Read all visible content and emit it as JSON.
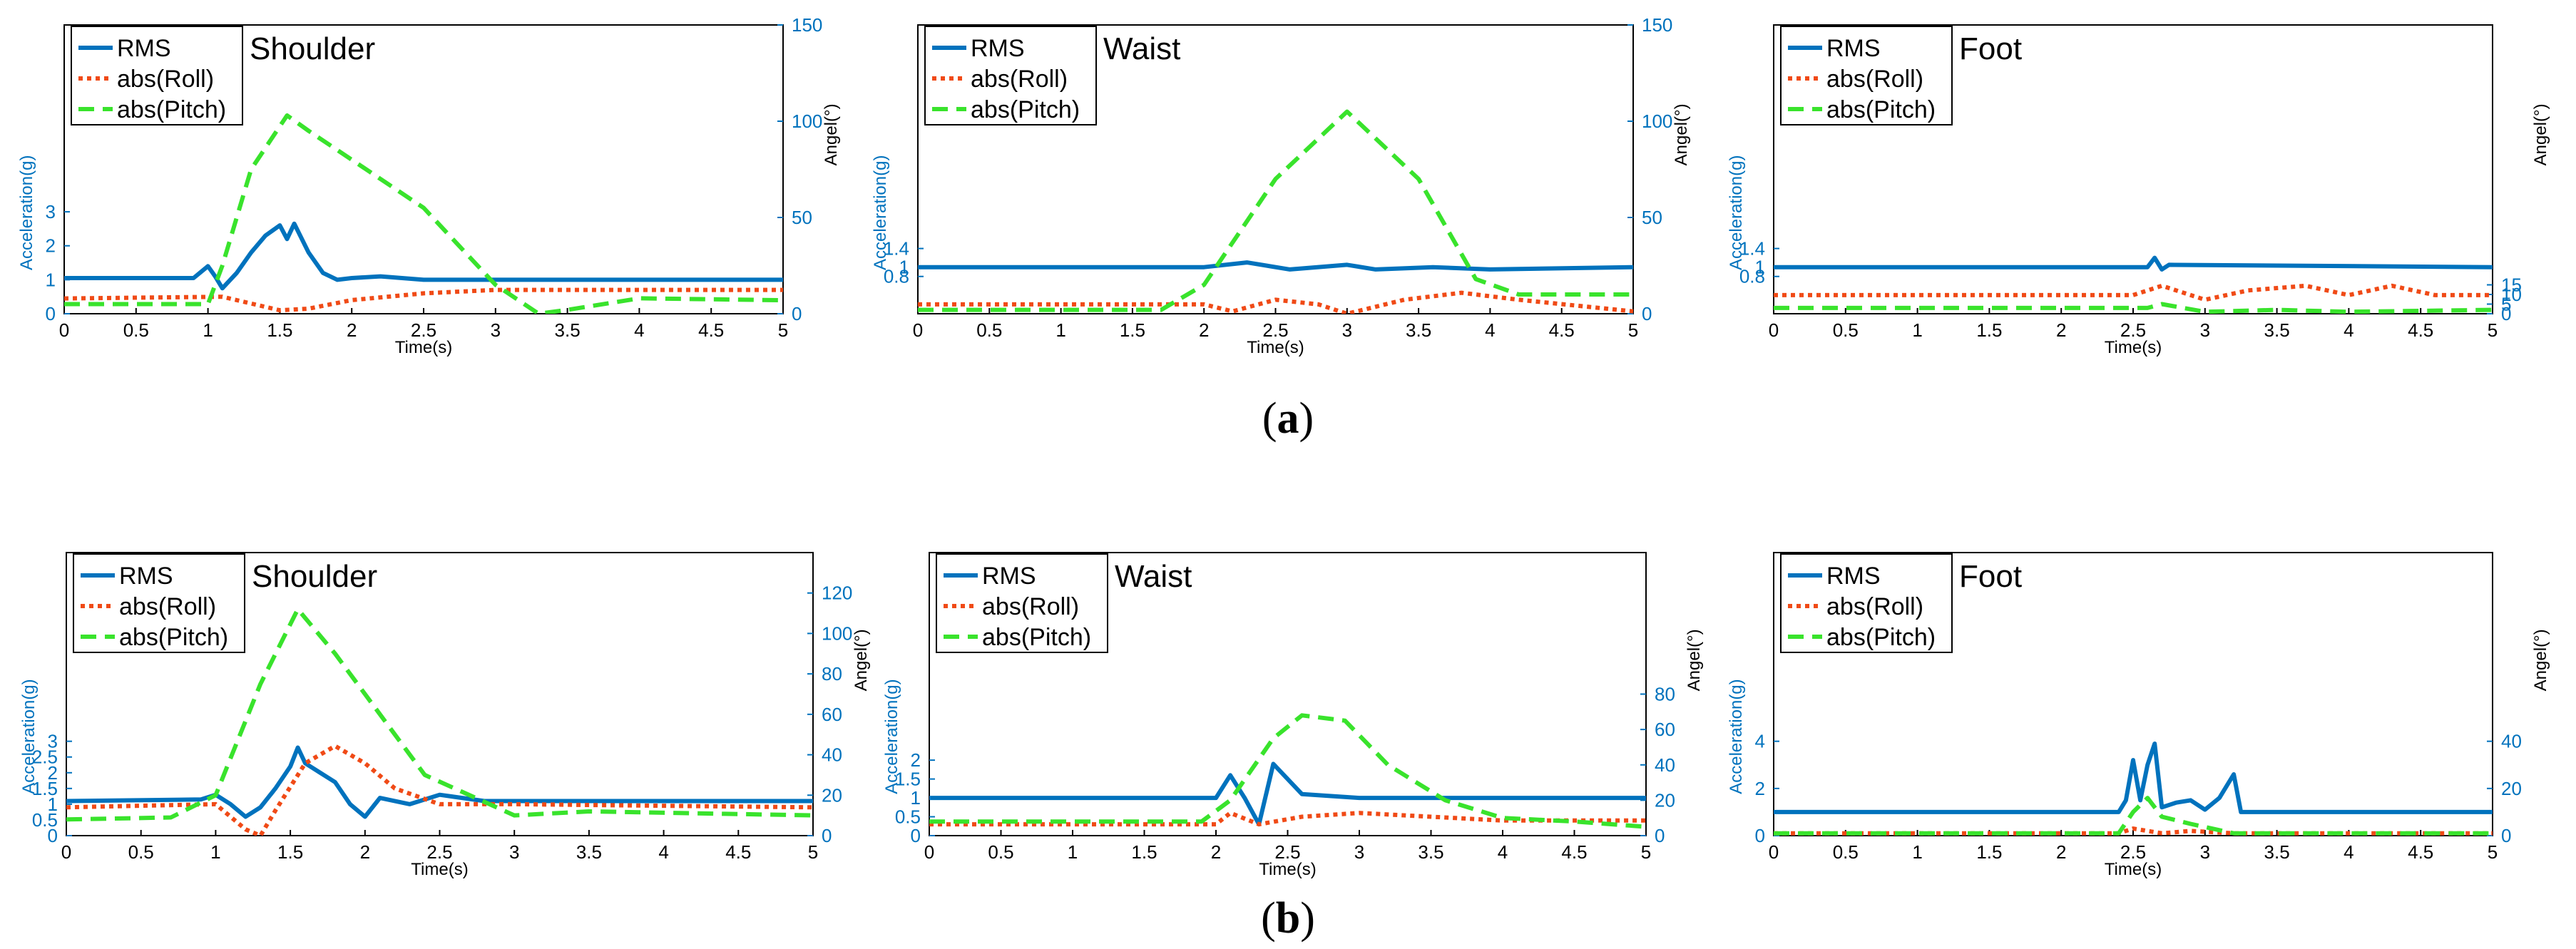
{
  "colors": {
    "rms": "#0072bd",
    "roll": "#f04a16",
    "pitch": "#39e32c",
    "axis_left": "#0072bd"
  },
  "captions": {
    "a": "a",
    "b": "b"
  },
  "chart_data": [
    {
      "type": "line",
      "title": "Shoulder",
      "xlabel": "Time(s)",
      "ylabel": "Acceleration(g)",
      "y2label": "Angel(°)",
      "xlim": [
        0,
        5
      ],
      "xticks": [
        "0",
        "0.5",
        "1",
        "1.5",
        "2",
        "2.5",
        "3",
        "3.5",
        "4",
        "4.5",
        "5"
      ],
      "ylim": [
        0,
        8.5
      ],
      "yticks": [
        "0",
        "1",
        "2",
        "3"
      ],
      "y2lim": [
        0,
        150
      ],
      "y2ticks": [
        "0",
        "50",
        "100",
        "150"
      ],
      "legend": [
        "RMS",
        "abs(Roll)",
        "abs(Pitch)"
      ],
      "series": [
        {
          "name": "RMS",
          "axis": "left",
          "x": [
            0,
            0.9,
            1.0,
            1.05,
            1.1,
            1.2,
            1.3,
            1.4,
            1.5,
            1.55,
            1.6,
            1.7,
            1.8,
            1.9,
            2.0,
            2.2,
            2.5,
            5.0
          ],
          "y": [
            1.05,
            1.05,
            1.4,
            1.1,
            0.75,
            1.2,
            1.8,
            2.3,
            2.6,
            2.2,
            2.65,
            1.8,
            1.2,
            1.0,
            1.05,
            1.1,
            1.0,
            1.0
          ]
        },
        {
          "name": "abs(Roll)",
          "axis": "left",
          "x": [
            0,
            1.1,
            1.3,
            1.5,
            1.7,
            2.0,
            2.5,
            3.0,
            5.0
          ],
          "y": [
            0.45,
            0.5,
            0.3,
            0.1,
            0.15,
            0.4,
            0.6,
            0.7,
            0.7
          ]
        },
        {
          "name": "abs(Pitch)",
          "axis": "right",
          "x": [
            0,
            1.0,
            1.1,
            1.3,
            1.55,
            1.7,
            2.0,
            2.5,
            3.0,
            3.3,
            3.5,
            4.0,
            5.0
          ],
          "y": [
            5,
            5,
            25,
            75,
            103,
            95,
            80,
            55,
            15,
            0,
            2,
            8,
            7
          ]
        }
      ]
    },
    {
      "type": "line",
      "title": "Waist",
      "xlabel": "Time(s)",
      "ylabel": "Acceleration(g)",
      "y2label": "Angel(°)",
      "xlim": [
        0,
        5
      ],
      "xticks": [
        "0",
        "0.5",
        "1",
        "1.5",
        "2",
        "2.5",
        "3",
        "3.5",
        "4",
        "4.5",
        "5"
      ],
      "ylim": [
        0,
        6.2
      ],
      "yticks": [
        "0.8",
        "1",
        "1.4"
      ],
      "y2lim": [
        0,
        150
      ],
      "y2ticks": [
        "0",
        "50",
        "100",
        "150"
      ],
      "legend": [
        "RMS",
        "abs(Roll)",
        "abs(Pitch)"
      ],
      "series": [
        {
          "name": "RMS",
          "axis": "left",
          "x": [
            0,
            2.0,
            2.3,
            2.6,
            3.0,
            3.2,
            3.6,
            4.0,
            5.0
          ],
          "y": [
            1.0,
            1.0,
            1.1,
            0.95,
            1.05,
            0.95,
            1.0,
            0.95,
            1.0
          ]
        },
        {
          "name": "abs(Roll)",
          "axis": "left",
          "x": [
            0,
            2.0,
            2.2,
            2.5,
            2.8,
            3.0,
            3.4,
            3.8,
            4.2,
            5.0
          ],
          "y": [
            0.2,
            0.2,
            0.05,
            0.3,
            0.2,
            0.0,
            0.3,
            0.45,
            0.3,
            0.05
          ]
        },
        {
          "name": "abs(Pitch)",
          "axis": "right",
          "x": [
            0,
            1.7,
            2.0,
            2.5,
            3.0,
            3.5,
            3.9,
            4.2,
            5.0
          ],
          "y": [
            2,
            2,
            15,
            70,
            105,
            70,
            18,
            10,
            10
          ]
        }
      ]
    },
    {
      "type": "line",
      "title": "Foot",
      "xlabel": "Time(s)",
      "ylabel": "Acceleration(g)",
      "y2label": "Angel(°)",
      "xlim": [
        0,
        5
      ],
      "xticks": [
        "0",
        "0.5",
        "1",
        "1.5",
        "2",
        "2.5",
        "3",
        "3.5",
        "4",
        "4.5",
        "5"
      ],
      "ylim": [
        0,
        6.2
      ],
      "yticks": [
        "0.8",
        "1",
        "1.4"
      ],
      "y2lim": [
        0,
        150
      ],
      "y2ticks": [
        "0",
        "5",
        "10",
        "15"
      ],
      "legend": [
        "RMS",
        "abs(Roll)",
        "abs(Pitch)"
      ],
      "series": [
        {
          "name": "RMS",
          "axis": "left",
          "x": [
            0,
            2.6,
            2.65,
            2.7,
            2.75,
            5.0
          ],
          "y": [
            1.0,
            1.0,
            1.2,
            0.95,
            1.05,
            1.0
          ]
        },
        {
          "name": "abs(Roll)",
          "axis": "left",
          "x": [
            0,
            2.5,
            2.7,
            3.0,
            3.3,
            3.7,
            4.0,
            4.3,
            4.6,
            5.0
          ],
          "y": [
            0.4,
            0.4,
            0.6,
            0.3,
            0.5,
            0.6,
            0.4,
            0.6,
            0.4,
            0.4
          ]
        },
        {
          "name": "abs(Pitch)",
          "axis": "right",
          "x": [
            0,
            2.6,
            2.7,
            3.0,
            3.5,
            4.0,
            5.0
          ],
          "y": [
            3,
            3,
            5,
            1,
            2,
            1,
            2
          ]
        }
      ]
    },
    {
      "type": "line",
      "title": "Shoulder",
      "xlabel": "Time(s)",
      "ylabel": "Acceleration(g)",
      "y2label": "Angel(°)",
      "xlim": [
        0,
        5
      ],
      "xticks": [
        "0",
        "0.5",
        "1",
        "1.5",
        "2",
        "2.5",
        "3",
        "3.5",
        "4",
        "4.5",
        "5"
      ],
      "ylim": [
        0,
        9.0
      ],
      "yticks": [
        "0",
        "0.5",
        "1",
        "1.5",
        "2",
        "2.5",
        "3"
      ],
      "y2lim": [
        0,
        140
      ],
      "y2ticks": [
        "0",
        "20",
        "40",
        "60",
        "80",
        "100",
        "120"
      ],
      "legend": [
        "RMS",
        "abs(Roll)",
        "abs(Pitch)"
      ],
      "series": [
        {
          "name": "RMS",
          "axis": "left",
          "x": [
            0,
            0.9,
            1.0,
            1.1,
            1.2,
            1.3,
            1.4,
            1.5,
            1.55,
            1.6,
            1.7,
            1.8,
            1.9,
            2.0,
            2.1,
            2.3,
            2.5,
            2.8,
            3.0,
            5.0
          ],
          "y": [
            1.1,
            1.15,
            1.3,
            1.0,
            0.6,
            0.9,
            1.5,
            2.2,
            2.8,
            2.3,
            2.0,
            1.7,
            1.0,
            0.6,
            1.2,
            1.0,
            1.3,
            1.1,
            1.1,
            1.1
          ]
        },
        {
          "name": "abs(Roll)",
          "axis": "left",
          "x": [
            0,
            1.0,
            1.2,
            1.3,
            1.4,
            1.6,
            1.8,
            2.0,
            2.2,
            2.5,
            3.0,
            5.0
          ],
          "y": [
            0.9,
            1.0,
            0.2,
            0.0,
            0.8,
            2.3,
            2.85,
            2.3,
            1.5,
            1.0,
            1.0,
            0.9
          ]
        },
        {
          "name": "abs(Pitch)",
          "axis": "right",
          "x": [
            0,
            0.7,
            1.0,
            1.3,
            1.55,
            1.8,
            2.0,
            2.4,
            3.0,
            3.5,
            5.0
          ],
          "y": [
            8,
            9,
            20,
            75,
            112,
            90,
            70,
            30,
            10,
            12,
            10
          ]
        }
      ]
    },
    {
      "type": "line",
      "title": "Waist",
      "xlabel": "Time(s)",
      "ylabel": "Acceleration(g)",
      "y2label": "Angel(°)",
      "xlim": [
        0,
        5
      ],
      "xticks": [
        "0",
        "0.5",
        "1",
        "1.5",
        "2",
        "2.5",
        "3",
        "3.5",
        "4",
        "4.5",
        "5"
      ],
      "ylim": [
        0,
        7.5
      ],
      "yticks": [
        "0",
        "0.5",
        "1",
        "1.5",
        "2"
      ],
      "y2lim": [
        0,
        160
      ],
      "y2ticks": [
        "0",
        "20",
        "40",
        "60",
        "80"
      ],
      "legend": [
        "RMS",
        "abs(Roll)",
        "abs(Pitch)"
      ],
      "series": [
        {
          "name": "RMS",
          "axis": "left",
          "x": [
            0,
            2.0,
            2.1,
            2.2,
            2.3,
            2.4,
            2.6,
            3.0,
            4.0,
            5.0
          ],
          "y": [
            1.0,
            1.0,
            1.6,
            1.0,
            0.3,
            1.9,
            1.1,
            1.0,
            1.0,
            1.0
          ]
        },
        {
          "name": "abs(Roll)",
          "axis": "left",
          "x": [
            0,
            2.0,
            2.1,
            2.3,
            2.6,
            3.0,
            3.5,
            4.0,
            5.0
          ],
          "y": [
            0.3,
            0.3,
            0.6,
            0.3,
            0.5,
            0.6,
            0.5,
            0.4,
            0.4
          ]
        },
        {
          "name": "abs(Pitch)",
          "axis": "right",
          "x": [
            0,
            1.9,
            2.1,
            2.4,
            2.6,
            2.9,
            3.2,
            3.6,
            4.0,
            4.5,
            5.0
          ],
          "y": [
            8,
            8,
            20,
            55,
            68,
            65,
            40,
            20,
            10,
            8,
            5
          ]
        }
      ]
    },
    {
      "type": "line",
      "title": "Foot",
      "xlabel": "Time(s)",
      "ylabel": "Acceleration(g)",
      "y2label": "Angel(°)",
      "xlim": [
        0,
        5
      ],
      "xticks": [
        "0",
        "0.5",
        "1",
        "1.5",
        "2",
        "2.5",
        "3",
        "3.5",
        "4",
        "4.5",
        "5"
      ],
      "ylim": [
        0,
        12.0
      ],
      "yticks": [
        "0",
        "2",
        "4"
      ],
      "y2lim": [
        0,
        120
      ],
      "y2ticks": [
        "0",
        "20",
        "40"
      ],
      "legend": [
        "RMS",
        "abs(Roll)",
        "abs(Pitch)"
      ],
      "series": [
        {
          "name": "RMS",
          "axis": "left",
          "x": [
            0,
            2.4,
            2.45,
            2.5,
            2.55,
            2.6,
            2.65,
            2.7,
            2.8,
            2.9,
            3.0,
            3.1,
            3.2,
            3.25,
            3.3,
            5.0
          ],
          "y": [
            1.0,
            1.0,
            1.5,
            3.2,
            1.5,
            3.0,
            3.9,
            1.2,
            1.4,
            1.5,
            1.1,
            1.6,
            2.6,
            1.0,
            1.0,
            1.0
          ]
        },
        {
          "name": "abs(Roll)",
          "axis": "left",
          "x": [
            0,
            2.4,
            2.5,
            2.7,
            2.9,
            3.2,
            5.0
          ],
          "y": [
            0.1,
            0.1,
            0.3,
            0.1,
            0.2,
            0.1,
            0.1
          ]
        },
        {
          "name": "abs(Pitch)",
          "axis": "right",
          "x": [
            0,
            2.4,
            2.5,
            2.6,
            2.7,
            2.9,
            3.2,
            5.0
          ],
          "y": [
            1,
            1,
            10,
            16,
            8,
            5,
            1,
            1
          ]
        }
      ]
    }
  ]
}
